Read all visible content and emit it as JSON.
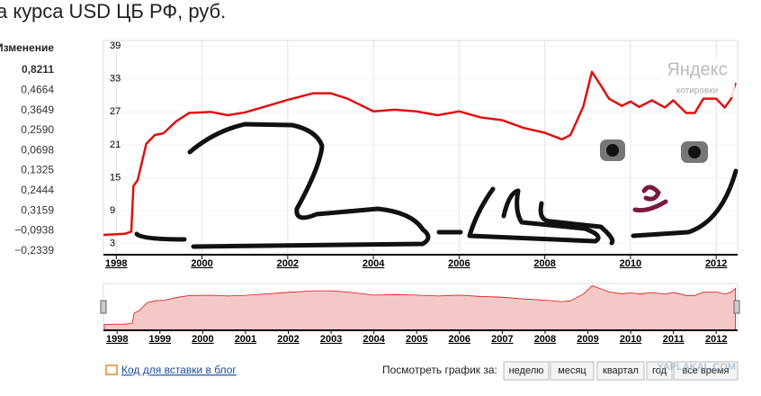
{
  "title": "а курса USD ЦБ РФ, руб.",
  "change": {
    "header": "Изменение",
    "values": [
      "0,8211",
      "0,4664",
      "0,3649",
      "0,2590",
      "0,0698",
      "0,1325",
      "0,2444",
      "0,3159",
      "−0,0938",
      "−0,2339"
    ]
  },
  "chart_data": {
    "type": "line",
    "x": [
      1997.7,
      1998.2,
      1998.35,
      1998.4,
      1998.5,
      1998.7,
      1998.9,
      1999.1,
      1999.4,
      1999.7,
      2000.2,
      2000.6,
      2001.0,
      2001.4,
      2002.0,
      2002.6,
      2003.0,
      2003.4,
      2004.0,
      2004.5,
      2005.0,
      2005.5,
      2006.0,
      2006.5,
      2007.0,
      2007.5,
      2008.0,
      2008.4,
      2008.6,
      2008.9,
      2009.1,
      2009.3,
      2009.5,
      2009.8,
      2010.0,
      2010.2,
      2010.5,
      2010.8,
      2011.0,
      2011.3,
      2011.5,
      2011.7,
      2012.0,
      2012.2,
      2012.35,
      2012.45
    ],
    "series": [
      {
        "color": "#e01010",
        "values": [
          4.6,
          4.8,
          5.2,
          13.5,
          14.6,
          21.2,
          22.8,
          23.1,
          25.3,
          26.8,
          27.0,
          26.4,
          26.9,
          27.8,
          29.2,
          30.4,
          30.4,
          29.4,
          27.1,
          27.4,
          27.1,
          26.4,
          27.1,
          26.0,
          25.5,
          24.1,
          23.2,
          22.0,
          22.8,
          28.0,
          34.3,
          31.9,
          29.4,
          28.1,
          28.9,
          27.9,
          29.1,
          27.8,
          29.1,
          26.8,
          26.8,
          29.4,
          29.4,
          27.8,
          29.4,
          32.3
        ]
      }
    ],
    "xlim": [
      1997.7,
      2012.5
    ],
    "ylim": [
      1,
      40
    ],
    "xticks": [
      1998,
      2000,
      2002,
      2004,
      2006,
      2008,
      2010,
      2012
    ],
    "yticks": [
      3,
      9,
      15,
      21,
      27,
      33,
      39
    ],
    "grid": true
  },
  "navigator": {
    "xlim": [
      1997.68,
      2012.5
    ],
    "ylim": [
      0,
      36
    ],
    "color": "#f5c8c8",
    "xticks": [
      1998,
      1999,
      2000,
      2001,
      2002,
      2003,
      2004,
      2005,
      2006,
      2007,
      2008,
      2009,
      2010,
      2011,
      2012
    ]
  },
  "logo": {
    "name": "Яндекс",
    "sub": "котировки"
  },
  "footer": {
    "link": "Код для вставки в блог",
    "period_label": "Посмотреть график за:",
    "periods": [
      "неделю",
      "месяц",
      "квартал",
      "год",
      "все время"
    ],
    "watermark": "YAPLAKAL.COM"
  }
}
